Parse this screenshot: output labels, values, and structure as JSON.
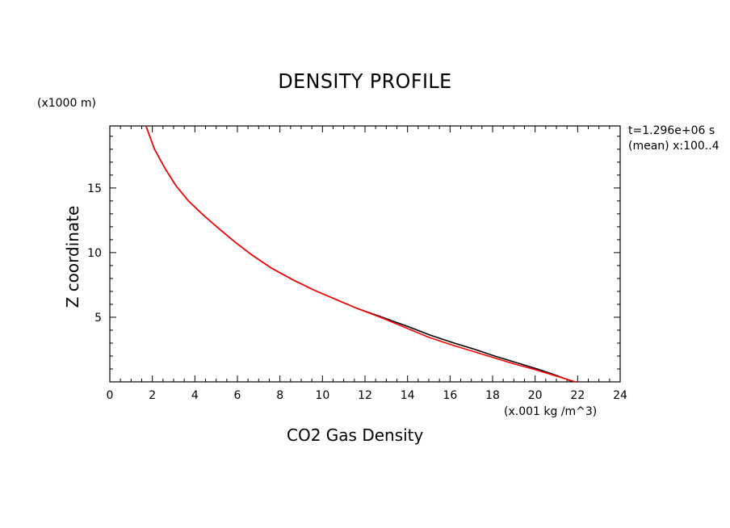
{
  "chart_data": {
    "type": "line",
    "title": "DENSITY PROFILE",
    "xlabel": "CO2 Gas Density",
    "ylabel": "Z coordinate",
    "x_unit": "(x.001 kg /m^3)",
    "y_unit": "(x1000 m)",
    "info_lines": [
      "t=1.296e+06 s",
      "(mean) x:100..4"
    ],
    "xlim": [
      0,
      24
    ],
    "ylim": [
      0,
      19.8
    ],
    "x_ticks": [
      0,
      2,
      4,
      6,
      8,
      10,
      12,
      14,
      16,
      18,
      20,
      22,
      24
    ],
    "y_ticks": [
      5,
      10,
      15
    ],
    "grid": false,
    "series": [
      {
        "color": "#000000",
        "points": [
          [
            21.8,
            0
          ],
          [
            21.0,
            0.5
          ],
          [
            20.1,
            1.0
          ],
          [
            19.1,
            1.5
          ],
          [
            18.1,
            2.0
          ],
          [
            17.2,
            2.5
          ],
          [
            16.2,
            3.0
          ],
          [
            15.1,
            3.6
          ],
          [
            14.0,
            4.3
          ],
          [
            12.8,
            5.0
          ],
          [
            11.6,
            5.7
          ],
          [
            10.6,
            6.4
          ],
          [
            9.6,
            7.1
          ],
          [
            8.6,
            7.9
          ],
          [
            7.6,
            8.8
          ],
          [
            6.7,
            9.8
          ],
          [
            5.9,
            10.8
          ],
          [
            5.1,
            11.9
          ],
          [
            4.4,
            12.9
          ],
          [
            3.7,
            14.0
          ],
          [
            3.1,
            15.2
          ],
          [
            2.6,
            16.5
          ],
          [
            2.1,
            18.0
          ],
          [
            1.7,
            19.8
          ]
        ]
      },
      {
        "color": "#ff0000",
        "points": [
          [
            21.9,
            0
          ],
          [
            21.0,
            0.45
          ],
          [
            20.0,
            0.95
          ],
          [
            19.0,
            1.4
          ],
          [
            18.0,
            1.9
          ],
          [
            17.1,
            2.35
          ],
          [
            16.1,
            2.85
          ],
          [
            15.0,
            3.45
          ],
          [
            13.9,
            4.2
          ],
          [
            12.8,
            4.95
          ],
          [
            11.6,
            5.7
          ],
          [
            10.6,
            6.4
          ],
          [
            9.6,
            7.1
          ],
          [
            8.6,
            7.9
          ],
          [
            7.6,
            8.8
          ],
          [
            6.7,
            9.8
          ],
          [
            5.9,
            10.8
          ],
          [
            5.1,
            11.9
          ],
          [
            4.4,
            12.9
          ],
          [
            3.7,
            14.0
          ],
          [
            3.1,
            15.2
          ],
          [
            2.6,
            16.5
          ],
          [
            2.1,
            18.0
          ],
          [
            1.7,
            19.8
          ]
        ]
      }
    ]
  }
}
